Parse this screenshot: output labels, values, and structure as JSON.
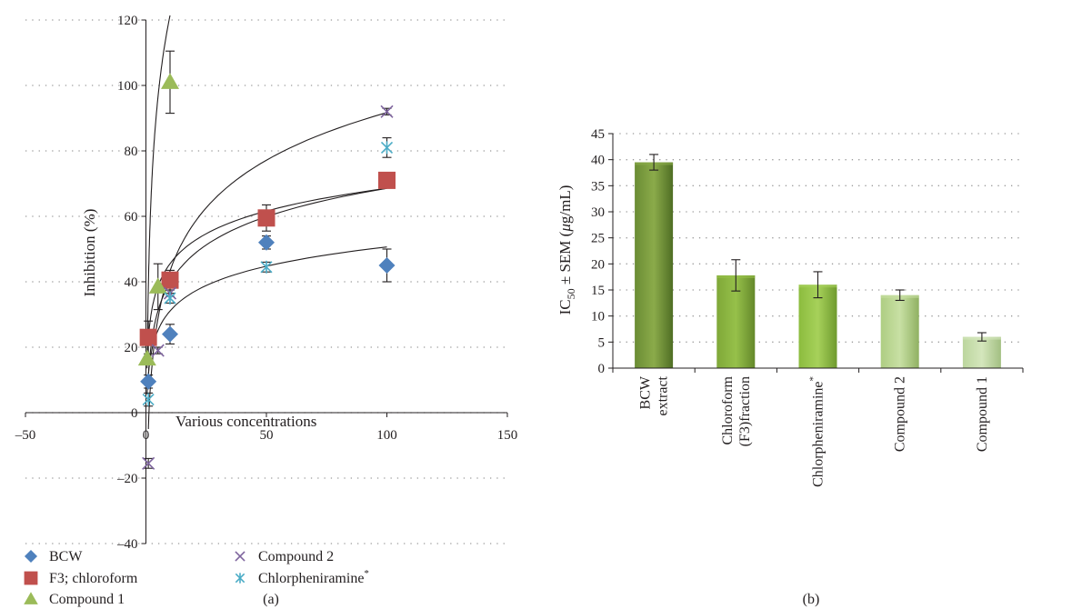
{
  "chart_data": [
    {
      "type": "scatter",
      "panel_label": "(a)",
      "xlabel": "Various concentrations",
      "ylabel": "Inhibition (%)",
      "xlim": [
        -50,
        150
      ],
      "ylim": [
        -40,
        120
      ],
      "x_ticks": [
        -50,
        0,
        50,
        100,
        150
      ],
      "y_ticks": [
        -40,
        -20,
        0,
        20,
        40,
        60,
        80,
        100,
        120
      ],
      "x_tick_labels": [
        "–50",
        "0",
        "50",
        "100",
        "150"
      ],
      "y_tick_labels": [
        "–40",
        "–20",
        "0",
        "20",
        "40",
        "60",
        "80",
        "100",
        "120"
      ],
      "grid": "horizontal-dotted",
      "legend_position": "bottom-left",
      "series": [
        {
          "name": "BCW",
          "marker": "diamond",
          "color": "#4f81bd",
          "points": [
            {
              "x": 1,
              "y": 9.5,
              "err": 2
            },
            {
              "x": 10,
              "y": 24,
              "err": 3
            },
            {
              "x": 50,
              "y": 52,
              "err": 2
            },
            {
              "x": 100,
              "y": 45,
              "err": 5
            }
          ],
          "trend": {
            "a": 11.5,
            "b": 8.5,
            "xmin": 0.5,
            "xmax": 100
          }
        },
        {
          "name": "F3; chloroform",
          "marker": "square",
          "color": "#c0504d",
          "points": [
            {
              "x": 1,
              "y": 23,
              "err": 5
            },
            {
              "x": 10,
              "y": 40.5,
              "err": 3
            },
            {
              "x": 50,
              "y": 59.5,
              "err": 4
            },
            {
              "x": 100,
              "y": 71,
              "err": 0
            }
          ],
          "trend": {
            "a": 22.5,
            "b": 10,
            "xmin": 0.5,
            "xmax": 100
          }
        },
        {
          "name": "Compound 1",
          "marker": "triangle",
          "color": "#9bbb59",
          "points": [
            {
              "x": 0.5,
              "y": 16.5,
              "err": 0
            },
            {
              "x": 5,
              "y": 38.5,
              "err": 7
            },
            {
              "x": 10,
              "y": 101,
              "err": 9.5
            }
          ],
          "trend": {
            "a": 38.5,
            "b": 36,
            "xmin": 0.5,
            "xmax": 10
          }
        },
        {
          "name": "Compound 2",
          "marker": "x",
          "color": "#7e649e",
          "points": [
            {
              "x": 1,
              "y": -15.5,
              "err": 1.5
            },
            {
              "x": 5,
              "y": 19,
              "err": 1
            },
            {
              "x": 10,
              "y": 36.5,
              "err": 1
            },
            {
              "x": 100,
              "y": 92,
              "err": 1
            }
          ],
          "trend": {
            "a": -5,
            "b": 21,
            "xmin": 1,
            "xmax": 100
          }
        },
        {
          "name": "Chlorpheniramine*",
          "marker": "asterisk",
          "color": "#4bacc6",
          "points": [
            {
              "x": 1,
              "y": 4,
              "err": 2
            },
            {
              "x": 10,
              "y": 35,
              "err": 1.5
            },
            {
              "x": 50,
              "y": 44.5,
              "err": 1.5
            },
            {
              "x": 100,
              "y": 81,
              "err": 3
            }
          ],
          "trend": {
            "a": 11,
            "b": 12.5,
            "xmin": 1,
            "xmax": 100
          }
        }
      ],
      "legend": {
        "rows": [
          [
            "BCW",
            "Compound 2"
          ],
          [
            "F3; chloroform",
            "Chlorpheniramine"
          ],
          [
            "Compound 1",
            ""
          ]
        ],
        "superscript": "*"
      }
    },
    {
      "type": "bar",
      "panel_label": "(b)",
      "ylabel_main": "IC",
      "ylabel_sub": "50",
      "ylabel_rest": " ± SEM (",
      "ylabel_mu": "μ",
      "ylabel_unit": "g/mL)",
      "ylim": [
        0,
        45
      ],
      "y_ticks": [
        0,
        5,
        10,
        15,
        20,
        25,
        30,
        35,
        40,
        45
      ],
      "y_tick_labels": [
        "0",
        "5",
        "10",
        "15",
        "20",
        "25",
        "30",
        "35",
        "40",
        "45"
      ],
      "grid": "horizontal-dotted",
      "categories": [
        "BCW extract",
        "Chloroform (F3)fraction",
        "Chlorpheniramine*",
        "Compound 2",
        "Compound 1"
      ],
      "category_lines": [
        [
          "BCW",
          "extract"
        ],
        [
          "Chloroform",
          "(F3)fraction"
        ],
        [
          "Chlorpheniramine"
        ],
        [
          "Compound 2"
        ],
        [
          "Compound 1"
        ]
      ],
      "category_superscripts": [
        "",
        "",
        "*",
        "",
        ""
      ],
      "values": [
        39.5,
        17.8,
        16,
        14,
        6
      ],
      "errors": [
        1.5,
        3,
        2.5,
        1,
        0.8
      ],
      "bar_colors": [
        [
          "#8bab4a",
          "#6a8c34",
          "#4f6e24"
        ],
        [
          "#96c04a",
          "#7fa838",
          "#64882a"
        ],
        [
          "#a6d15a",
          "#8cbc3e",
          "#6f9a2e"
        ],
        [
          "#c8e0a4",
          "#aecd82",
          "#90b162"
        ],
        [
          "#d4e6bc",
          "#bcd69e",
          "#a2bf82"
        ]
      ]
    }
  ]
}
